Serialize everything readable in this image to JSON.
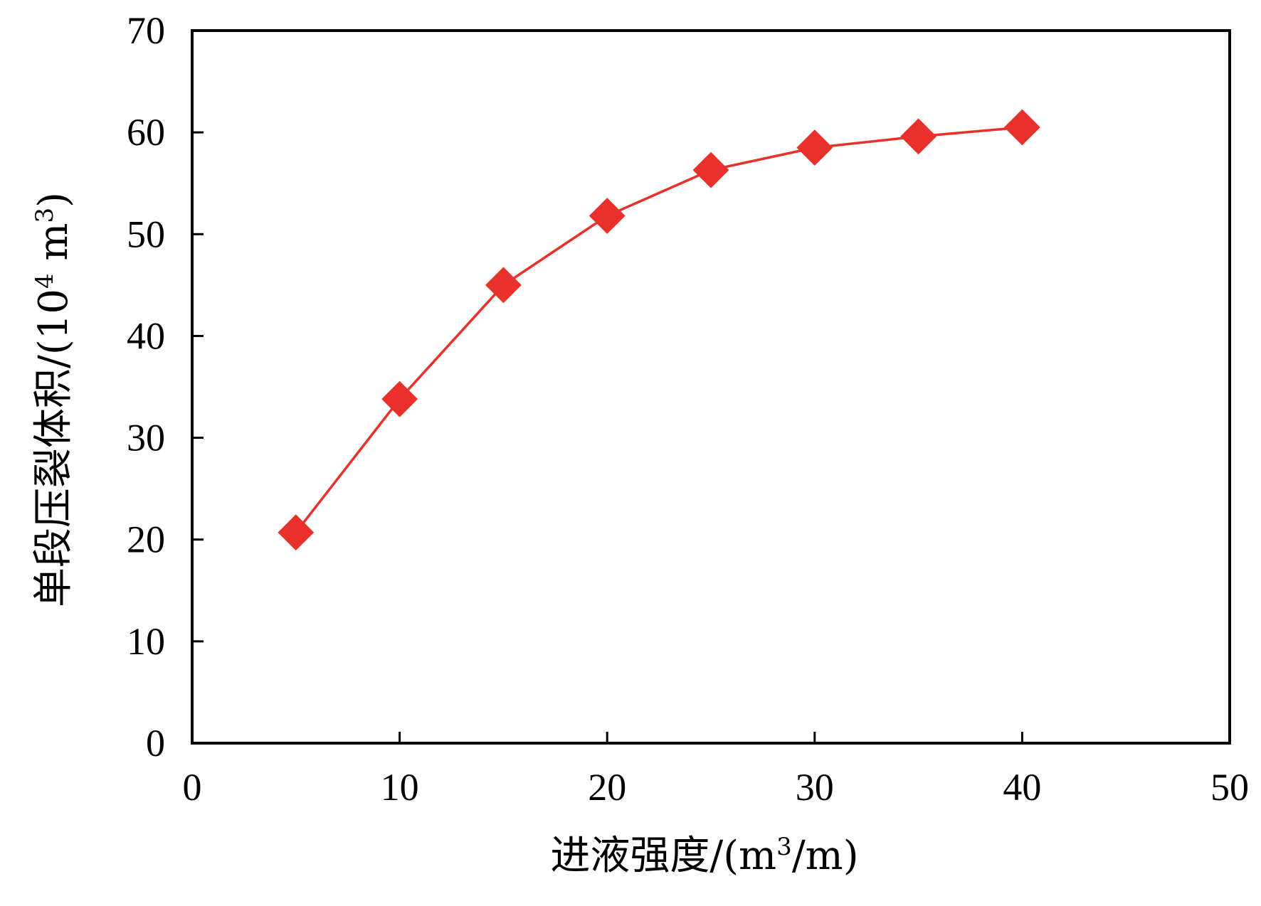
{
  "chart_data": {
    "type": "line",
    "title": "",
    "xlabel": {
      "main": "进液强度/(m",
      "sup": "3",
      "tail": "/m)"
    },
    "ylabel": {
      "main": "单段压裂体积/(10",
      "sup": "4",
      "mid": " m",
      "sup2": "3",
      "tail": ")"
    },
    "xlim": [
      0,
      50
    ],
    "ylim": [
      0,
      70
    ],
    "x_ticks": [
      "0",
      "10",
      "20",
      "30",
      "40",
      "50"
    ],
    "y_ticks": [
      "0",
      "10",
      "20",
      "30",
      "40",
      "50",
      "60",
      "70"
    ],
    "grid": false,
    "legend": "none",
    "series": [
      {
        "marker": "diamond",
        "color": "#e8312a",
        "x": [
          5,
          10,
          15,
          20,
          25,
          30,
          35,
          40
        ],
        "y": [
          20.7,
          33.8,
          45.0,
          51.8,
          56.3,
          58.5,
          59.6,
          60.5
        ]
      }
    ]
  }
}
